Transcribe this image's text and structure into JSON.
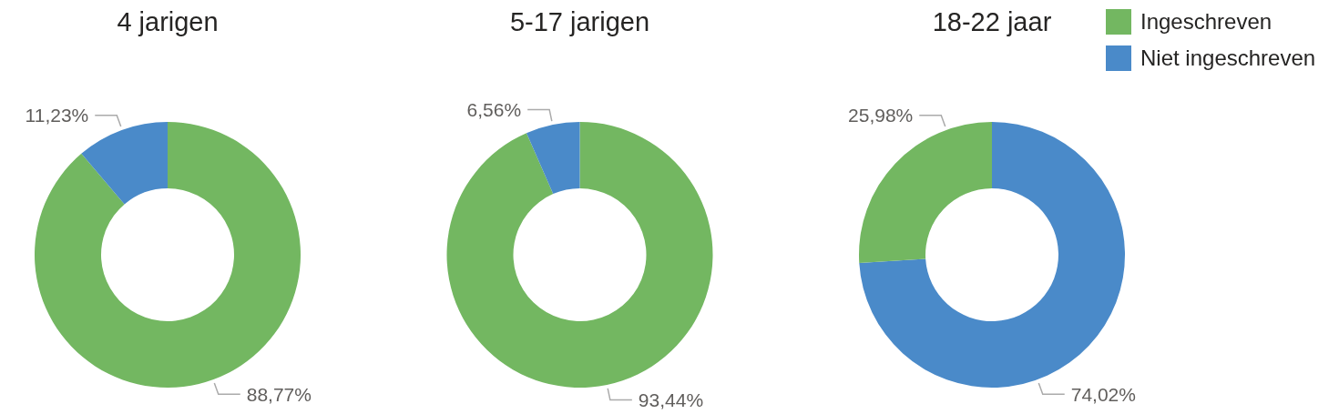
{
  "chart_data": [
    {
      "type": "donut",
      "title": "4 jarigen",
      "categories": [
        "Ingeschreven",
        "Niet ingeschreven"
      ],
      "values": [
        88.77,
        11.23
      ],
      "colors": [
        "#73b761",
        "#4a8ac9"
      ],
      "value_labels": [
        "88,77%",
        "11,23%"
      ],
      "legend": "top right"
    },
    {
      "type": "donut",
      "title": "5-17 jarigen",
      "categories": [
        null,
        null
      ],
      "values": [
        93.44,
        6.56
      ],
      "colors": [
        "#73b761",
        "#4a8ac9"
      ],
      "value_labels": [
        "93,44%",
        "6,56%"
      ]
    },
    {
      "type": "donut",
      "title": "18-22 jaar",
      "categories": [
        null,
        null
      ],
      "values": [
        74.02,
        25.98
      ],
      "colors": [
        "#4a8ac9",
        "#73b761"
      ],
      "value_labels": [
        "74,02%",
        "25,98%"
      ]
    }
  ]
}
